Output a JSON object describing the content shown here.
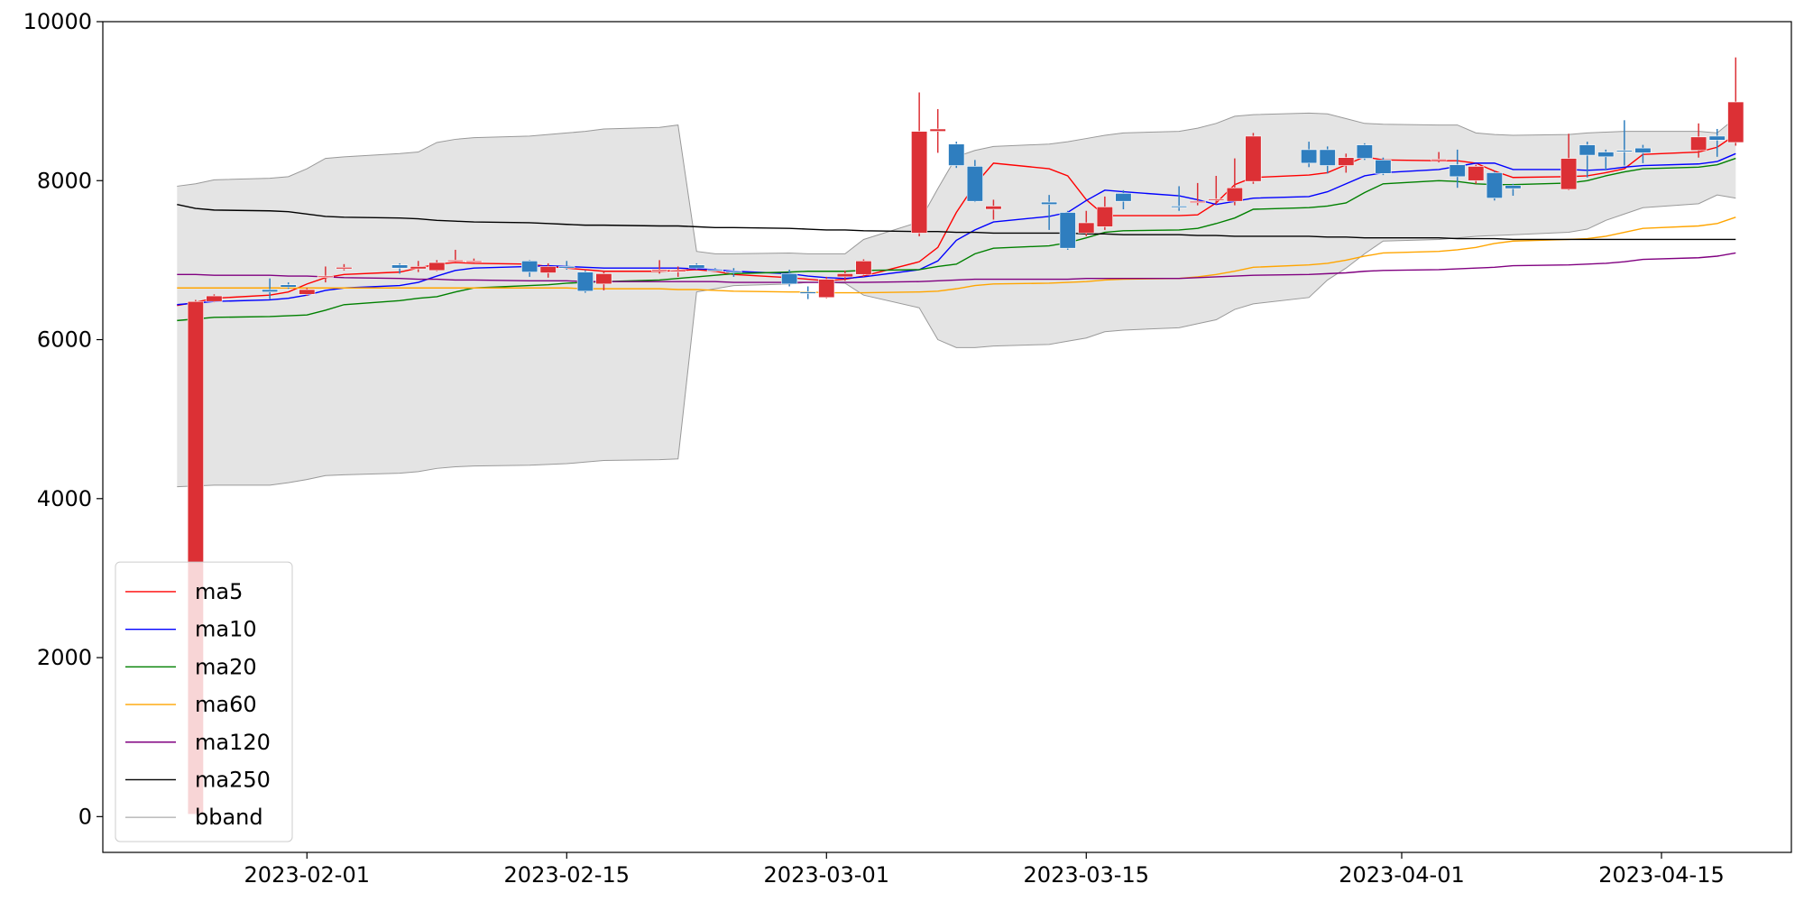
{
  "chart_data": {
    "type": "candlestick",
    "x": [
      "2023-01-25",
      "2023-01-26",
      "2023-01-27",
      "2023-01-30",
      "2023-01-31",
      "2023-02-01",
      "2023-02-02",
      "2023-02-03",
      "2023-02-06",
      "2023-02-07",
      "2023-02-08",
      "2023-02-09",
      "2023-02-10",
      "2023-02-13",
      "2023-02-14",
      "2023-02-15",
      "2023-02-16",
      "2023-02-17",
      "2023-02-20",
      "2023-02-21",
      "2023-02-22",
      "2023-02-23",
      "2023-02-24",
      "2023-02-27",
      "2023-02-28",
      "2023-03-01",
      "2023-03-02",
      "2023-03-03",
      "2023-03-06",
      "2023-03-07",
      "2023-03-08",
      "2023-03-09",
      "2023-03-10",
      "2023-03-13",
      "2023-03-14",
      "2023-03-15",
      "2023-03-16",
      "2023-03-17",
      "2023-03-20",
      "2023-03-21",
      "2023-03-22",
      "2023-03-23",
      "2023-03-24",
      "2023-03-27",
      "2023-03-28",
      "2023-03-29",
      "2023-03-30",
      "2023-03-31",
      "2023-04-03",
      "2023-04-04",
      "2023-04-05",
      "2023-04-06",
      "2023-04-07",
      "2023-04-10",
      "2023-04-11",
      "2023-04-12",
      "2023-04-13",
      "2023-04-14",
      "2023-04-17",
      "2023-04-18",
      "2023-04-19"
    ],
    "open": [
      null,
      30,
      6480,
      6630,
      6690,
      6570,
      6790,
      6890,
      6940,
      6890,
      6870,
      6990,
      6980,
      6990,
      6840,
      6920,
      6850,
      6700,
      6860,
      6860,
      6940,
      6880,
      6860,
      6830,
      6600,
      6530,
      6790,
      6820,
      7340,
      8620,
      8460,
      8180,
      7640,
      7730,
      7600,
      7340,
      7420,
      7840,
      7680,
      7730,
      7760,
      7740,
      7990,
      8390,
      8390,
      8190,
      8450,
      8260,
      8260,
      8200,
      8000,
      8100,
      7940,
      7890,
      8450,
      8360,
      8380,
      8410,
      8380,
      8560,
      8480
    ],
    "high": [
      null,
      6500,
      6570,
      6770,
      6720,
      6650,
      6920,
      6950,
      6960,
      6990,
      7000,
      7130,
      7020,
      7000,
      6960,
      6990,
      6870,
      6870,
      7000,
      6920,
      6960,
      6900,
      6900,
      6880,
      6670,
      6790,
      6870,
      7010,
      9110,
      8900,
      8490,
      8260,
      7760,
      7820,
      7620,
      7620,
      7800,
      7880,
      7930,
      7970,
      8060,
      8280,
      8600,
      8490,
      8430,
      8340,
      8470,
      8290,
      8360,
      8390,
      8200,
      8120,
      7960,
      8590,
      8490,
      8390,
      8760,
      8450,
      8720,
      8650,
      9550
    ],
    "low": [
      null,
      20,
      6470,
      6510,
      6640,
      6550,
      6720,
      6870,
      6830,
      6850,
      6860,
      6970,
      6960,
      6790,
      6780,
      6880,
      6590,
      6620,
      6830,
      6790,
      6880,
      6860,
      6790,
      6670,
      6510,
      6520,
      6740,
      6790,
      7300,
      8350,
      8160,
      7730,
      7510,
      7380,
      7130,
      7300,
      7380,
      7640,
      7620,
      7690,
      7700,
      7690,
      7960,
      8170,
      8090,
      8100,
      8260,
      8070,
      8230,
      7910,
      7960,
      7750,
      7810,
      7880,
      8040,
      8130,
      8190,
      8220,
      8290,
      8300,
      8440
    ],
    "close": [
      null,
      6480,
      6550,
      6600,
      6660,
      6630,
      6800,
      6910,
      6900,
      6920,
      6970,
      7000,
      6990,
      6850,
      6920,
      6900,
      6610,
      6830,
      6880,
      6870,
      6900,
      6870,
      6850,
      6700,
      6580,
      6760,
      6830,
      6990,
      8620,
      8650,
      8190,
      7740,
      7680,
      7700,
      7150,
      7470,
      7670,
      7740,
      7670,
      7740,
      7770,
      7910,
      8560,
      8220,
      8190,
      8290,
      8280,
      8090,
      8270,
      8050,
      8180,
      7780,
      7900,
      8280,
      8320,
      8300,
      8370,
      8350,
      8550,
      8510,
      8990
    ],
    "up_color": "#dc3035",
    "down_color": "#2f7ebf",
    "series": [
      {
        "name": "ma5",
        "color": "#ff0000",
        "values": [
          6430,
          6470,
          6520,
          6560,
          6600,
          6700,
          6780,
          6820,
          6850,
          6900,
          6950,
          6970,
          6960,
          6950,
          6920,
          6900,
          6880,
          6860,
          6860,
          6870,
          6880,
          6860,
          6820,
          6780,
          6760,
          6740,
          6760,
          6800,
          6980,
          7160,
          7600,
          7950,
          8220,
          8150,
          8060,
          7760,
          7560,
          7560,
          7560,
          7570,
          7720,
          7950,
          8040,
          8070,
          8100,
          8200,
          8300,
          8260,
          8250,
          8250,
          8220,
          8120,
          8040,
          8050,
          8060,
          8100,
          8150,
          8330,
          8360,
          8420,
          8580
        ]
      },
      {
        "name": "ma10",
        "color": "#0000ff",
        "values": [
          6440,
          6460,
          6480,
          6500,
          6520,
          6560,
          6620,
          6650,
          6680,
          6720,
          6800,
          6870,
          6900,
          6920,
          6930,
          6920,
          6910,
          6900,
          6900,
          6900,
          6890,
          6880,
          6860,
          6830,
          6800,
          6780,
          6770,
          6790,
          6880,
          6990,
          7250,
          7380,
          7480,
          7550,
          7600,
          7750,
          7880,
          7860,
          7810,
          7760,
          7700,
          7740,
          7780,
          7800,
          7860,
          7960,
          8060,
          8100,
          8140,
          8180,
          8220,
          8220,
          8140,
          8140,
          8130,
          8140,
          8170,
          8190,
          8210,
          8240,
          8340
        ]
      },
      {
        "name": "ma20",
        "color": "#008000",
        "values": [
          6240,
          6260,
          6280,
          6290,
          6300,
          6310,
          6370,
          6440,
          6490,
          6520,
          6540,
          6600,
          6650,
          6680,
          6690,
          6710,
          6720,
          6730,
          6750,
          6770,
          6790,
          6810,
          6830,
          6850,
          6860,
          6860,
          6860,
          6870,
          6880,
          6920,
          6950,
          7080,
          7150,
          7180,
          7220,
          7280,
          7350,
          7370,
          7380,
          7400,
          7460,
          7530,
          7640,
          7660,
          7680,
          7720,
          7850,
          7960,
          8000,
          7990,
          7960,
          7950,
          7950,
          7970,
          8000,
          8060,
          8110,
          8150,
          8170,
          8200,
          8280
        ]
      },
      {
        "name": "ma60",
        "color": "#ffa500",
        "values": [
          6650,
          6650,
          6650,
          6650,
          6650,
          6650,
          6650,
          6650,
          6650,
          6650,
          6650,
          6650,
          6650,
          6650,
          6650,
          6650,
          6640,
          6640,
          6640,
          6630,
          6630,
          6620,
          6610,
          6600,
          6600,
          6590,
          6590,
          6590,
          6600,
          6610,
          6640,
          6680,
          6700,
          6710,
          6720,
          6730,
          6750,
          6760,
          6770,
          6790,
          6820,
          6860,
          6910,
          6940,
          6960,
          7000,
          7050,
          7090,
          7110,
          7130,
          7160,
          7210,
          7240,
          7260,
          7270,
          7300,
          7350,
          7400,
          7430,
          7460,
          7540
        ]
      },
      {
        "name": "ma120",
        "color": "#800080",
        "values": [
          6820,
          6820,
          6810,
          6810,
          6800,
          6800,
          6790,
          6780,
          6770,
          6760,
          6760,
          6750,
          6750,
          6740,
          6740,
          6740,
          6730,
          6730,
          6730,
          6730,
          6730,
          6730,
          6720,
          6720,
          6720,
          6720,
          6720,
          6720,
          6730,
          6740,
          6750,
          6760,
          6760,
          6760,
          6760,
          6770,
          6770,
          6770,
          6770,
          6780,
          6790,
          6800,
          6810,
          6820,
          6830,
          6840,
          6860,
          6870,
          6880,
          6890,
          6900,
          6910,
          6930,
          6940,
          6950,
          6960,
          6980,
          7010,
          7030,
          7050,
          7090
        ]
      },
      {
        "name": "ma250",
        "color": "#000000",
        "values": [
          7700,
          7650,
          7630,
          7620,
          7610,
          7580,
          7550,
          7540,
          7530,
          7520,
          7500,
          7490,
          7480,
          7470,
          7460,
          7450,
          7440,
          7440,
          7430,
          7430,
          7420,
          7410,
          7410,
          7400,
          7390,
          7380,
          7380,
          7370,
          7360,
          7360,
          7350,
          7350,
          7340,
          7340,
          7340,
          7330,
          7330,
          7320,
          7320,
          7310,
          7310,
          7300,
          7300,
          7300,
          7290,
          7290,
          7280,
          7280,
          7280,
          7270,
          7270,
          7270,
          7260,
          7260,
          7260,
          7260,
          7260,
          7260,
          7260,
          7260,
          7260
        ]
      }
    ],
    "bband": {
      "name": "bband",
      "color": "#999999",
      "fill": "#e4e4e4",
      "upper": [
        7930,
        7960,
        8010,
        8030,
        8050,
        8150,
        8280,
        8300,
        8340,
        8360,
        8480,
        8520,
        8540,
        8560,
        8580,
        8600,
        8620,
        8650,
        8670,
        8700,
        7110,
        7080,
        7080,
        7090,
        7080,
        7080,
        7080,
        7260,
        7480,
        7900,
        8300,
        8380,
        8430,
        8460,
        8490,
        8530,
        8570,
        8600,
        8620,
        8660,
        8720,
        8810,
        8830,
        8850,
        8840,
        8780,
        8720,
        8710,
        8700,
        8700,
        8600,
        8580,
        8570,
        8580,
        8600,
        8610,
        8620,
        8620,
        8620,
        8600,
        8790
      ],
      "lower": [
        4150,
        4160,
        4170,
        4170,
        4200,
        4240,
        4290,
        4300,
        4320,
        4340,
        4380,
        4400,
        4410,
        4420,
        4430,
        4440,
        4460,
        4480,
        4490,
        4500,
        6600,
        6640,
        6680,
        6700,
        6720,
        6720,
        6710,
        6560,
        6400,
        6000,
        5900,
        5900,
        5920,
        5940,
        5980,
        6020,
        6100,
        6120,
        6150,
        6200,
        6250,
        6380,
        6450,
        6530,
        6750,
        6900,
        7080,
        7240,
        7260,
        7280,
        7300,
        7310,
        7320,
        7350,
        7390,
        7500,
        7580,
        7660,
        7710,
        7820,
        7780
      ]
    },
    "xlim": [
      "2023-01-21",
      "2023-04-22"
    ],
    "xticks": [
      "2023-02-01",
      "2023-02-15",
      "2023-03-01",
      "2023-03-15",
      "2023-04-01",
      "2023-04-15"
    ],
    "ylim": [
      -450,
      10000
    ],
    "yticks": [
      0,
      2000,
      4000,
      6000,
      8000,
      10000
    ],
    "legend": "lower left"
  }
}
